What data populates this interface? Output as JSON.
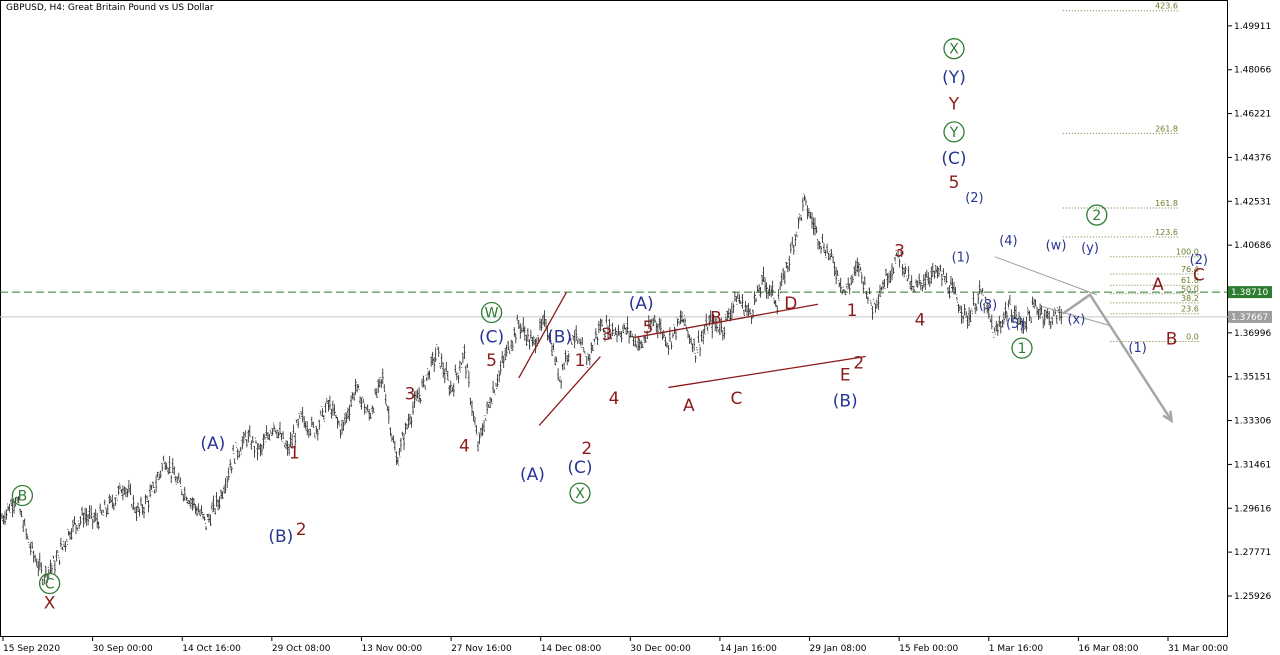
{
  "chart_data": {
    "type": "line",
    "title": "GBPUSD, H4:  Great Britain Pound vs US Dollar",
    "xlabel": "",
    "ylabel": "",
    "ylim": [
      1.242,
      1.51
    ],
    "grid": false,
    "x_ticks": [
      "15 Sep 2020",
      "30 Sep 00:00",
      "14 Oct 16:00",
      "29 Oct 08:00",
      "13 Nov 00:00",
      "27 Nov 16:00",
      "14 Dec 08:00",
      "30 Dec 00:00",
      "14 Jan 16:00",
      "29 Jan 08:00",
      "15 Feb 00:00",
      "1 Mar 16:00",
      "16 Mar 08:00",
      "31 Mar 00:00"
    ],
    "y_ticks": [
      "1.49911",
      "1.48066",
      "1.46221",
      "1.44376",
      "1.42531",
      "1.40686",
      "1.38710",
      "1.36996",
      "1.35151",
      "1.33306",
      "1.31461",
      "1.29616",
      "1.27771",
      "1.25926"
    ],
    "price_tags": {
      "ask": {
        "label": "1.38710",
        "value": 1.3871,
        "color": "#2e7d32"
      },
      "bid": {
        "label": "1.37667",
        "value": 1.37667,
        "color": "#9e9e9e"
      }
    },
    "price_path": [
      [
        0,
        1.292
      ],
      [
        2,
        1.301
      ],
      [
        4,
        1.281
      ],
      [
        6,
        1.268
      ],
      [
        8,
        1.274
      ],
      [
        10,
        1.287
      ],
      [
        12,
        1.293
      ],
      [
        14,
        1.291
      ],
      [
        16,
        1.298
      ],
      [
        18,
        1.306
      ],
      [
        20,
        1.294
      ],
      [
        22,
        1.302
      ],
      [
        24,
        1.317
      ],
      [
        26,
        1.306
      ],
      [
        28,
        1.299
      ],
      [
        30,
        1.29
      ],
      [
        32,
        1.3
      ],
      [
        34,
        1.318
      ],
      [
        36,
        1.326
      ],
      [
        38,
        1.32
      ],
      [
        40,
        1.332
      ],
      [
        42,
        1.32
      ],
      [
        44,
        1.334
      ],
      [
        46,
        1.329
      ],
      [
        48,
        1.34
      ],
      [
        50,
        1.329
      ],
      [
        52,
        1.347
      ],
      [
        54,
        1.335
      ],
      [
        56,
        1.351
      ],
      [
        58,
        1.316
      ],
      [
        60,
        1.335
      ],
      [
        62,
        1.348
      ],
      [
        64,
        1.362
      ],
      [
        66,
        1.346
      ],
      [
        68,
        1.361
      ],
      [
        70,
        1.322
      ],
      [
        72,
        1.344
      ],
      [
        74,
        1.36
      ],
      [
        76,
        1.374
      ],
      [
        78,
        1.365
      ],
      [
        80,
        1.375
      ],
      [
        82,
        1.351
      ],
      [
        84,
        1.37
      ],
      [
        86,
        1.358
      ],
      [
        88,
        1.373
      ],
      [
        90,
        1.371
      ],
      [
        92,
        1.371
      ],
      [
        94,
        1.364
      ],
      [
        96,
        1.376
      ],
      [
        98,
        1.366
      ],
      [
        100,
        1.376
      ],
      [
        102,
        1.363
      ],
      [
        104,
        1.374
      ],
      [
        106,
        1.372
      ],
      [
        108,
        1.385
      ],
      [
        110,
        1.378
      ],
      [
        112,
        1.392
      ],
      [
        114,
        1.383
      ],
      [
        116,
        1.404
      ],
      [
        118,
        1.425
      ],
      [
        120,
        1.411
      ],
      [
        122,
        1.401
      ],
      [
        124,
        1.387
      ],
      [
        126,
        1.398
      ],
      [
        128,
        1.381
      ],
      [
        130,
        1.393
      ],
      [
        132,
        1.403
      ],
      [
        134,
        1.387
      ],
      [
        136,
        1.394
      ],
      [
        138,
        1.395
      ],
      [
        140,
        1.386
      ],
      [
        142,
        1.376
      ],
      [
        144,
        1.387
      ],
      [
        146,
        1.369
      ],
      [
        148,
        1.381
      ],
      [
        150,
        1.373
      ],
      [
        152,
        1.381
      ],
      [
        154,
        1.376
      ],
      [
        156,
        1.378
      ]
    ],
    "forecast": [
      [
        156,
        1.378
      ],
      [
        160,
        1.386
      ],
      [
        172,
        1.333
      ]
    ],
    "fib_levels": [
      {
        "label": "423.6",
        "value": 1.5055
      },
      {
        "label": "261.8",
        "value": 1.4539
      },
      {
        "label": "161.8",
        "value": 1.4225
      },
      {
        "label": "123.6",
        "value": 1.4103
      },
      {
        "label": "100.0",
        "value": 1.402
      },
      {
        "label": "76.4",
        "value": 1.3947
      },
      {
        "label": "61.8",
        "value": 1.39
      },
      {
        "label": "50.0",
        "value": 1.3864
      },
      {
        "label": "38.2",
        "value": 1.3826
      },
      {
        "label": "23.6",
        "value": 1.378
      },
      {
        "label": "0.0",
        "value": 1.3663
      }
    ],
    "channels": [
      {
        "from": [
          93,
          1.368
        ],
        "to": [
          120,
          1.382
        ],
        "color": "#8b1a1a"
      },
      {
        "from": [
          98,
          1.347
        ],
        "to": [
          127,
          1.36
        ],
        "color": "#8b1a1a"
      }
    ],
    "diagonals": [
      {
        "from": [
          76,
          1.351
        ],
        "to": [
          83,
          1.387
        ],
        "color": "#8b1a1a"
      },
      {
        "from": [
          79,
          1.331
        ],
        "to": [
          88,
          1.36
        ],
        "color": "#8b1a1a"
      }
    ],
    "trend_lines": [
      {
        "from": [
          146,
          1.402
        ],
        "to": [
          161,
          1.386
        ],
        "color": "#9e9e9e"
      },
      {
        "from": [
          153,
          1.381
        ],
        "to": [
          163,
          1.373
        ],
        "color": "#9e9e9e"
      }
    ],
    "annotations": [
      {
        "text": "B",
        "x": 3,
        "y": 1.299,
        "color": "#2e7d32",
        "circled": true
      },
      {
        "text": "C",
        "x": 7,
        "y": 1.262,
        "color": "#2e7d32",
        "circled": true
      },
      {
        "text": "X",
        "x": 7,
        "y": 1.254,
        "color": "#8b1a1a"
      },
      {
        "text": "(A)",
        "x": 31,
        "y": 1.321,
        "color": "#283593"
      },
      {
        "text": "(B)",
        "x": 41,
        "y": 1.282,
        "color": "#283593"
      },
      {
        "text": "1",
        "x": 43,
        "y": 1.317,
        "color": "#8b1a1a"
      },
      {
        "text": "2",
        "x": 44,
        "y": 1.285,
        "color": "#8b1a1a"
      },
      {
        "text": "3",
        "x": 60,
        "y": 1.342,
        "color": "#8b1a1a"
      },
      {
        "text": "4",
        "x": 68,
        "y": 1.32,
        "color": "#8b1a1a"
      },
      {
        "text": "5",
        "x": 72,
        "y": 1.356,
        "color": "#8b1a1a"
      },
      {
        "text": "(C)",
        "x": 72,
        "y": 1.366,
        "color": "#283593"
      },
      {
        "text": "W",
        "x": 72,
        "y": 1.376,
        "color": "#2e7d32",
        "circled": true
      },
      {
        "text": "(A)",
        "x": 78,
        "y": 1.308,
        "color": "#283593"
      },
      {
        "text": "(B)",
        "x": 82,
        "y": 1.366,
        "color": "#283593"
      },
      {
        "text": "1",
        "x": 85,
        "y": 1.356,
        "color": "#8b1a1a"
      },
      {
        "text": "2",
        "x": 86,
        "y": 1.319,
        "color": "#8b1a1a"
      },
      {
        "text": "(C)",
        "x": 85,
        "y": 1.311,
        "color": "#283593"
      },
      {
        "text": "X",
        "x": 85,
        "y": 1.3,
        "color": "#2e7d32",
        "circled": true
      },
      {
        "text": "3",
        "x": 89,
        "y": 1.367,
        "color": "#8b1a1a"
      },
      {
        "text": "4",
        "x": 90,
        "y": 1.34,
        "color": "#8b1a1a"
      },
      {
        "text": "5",
        "x": 95,
        "y": 1.37,
        "color": "#8b1a1a"
      },
      {
        "text": "(A)",
        "x": 94,
        "y": 1.38,
        "color": "#283593"
      },
      {
        "text": "A",
        "x": 101,
        "y": 1.337,
        "color": "#8b1a1a"
      },
      {
        "text": "B",
        "x": 105,
        "y": 1.374,
        "color": "#8b1a1a"
      },
      {
        "text": "C",
        "x": 108,
        "y": 1.34,
        "color": "#8b1a1a"
      },
      {
        "text": "D",
        "x": 116,
        "y": 1.38,
        "color": "#8b1a1a"
      },
      {
        "text": "E",
        "x": 124,
        "y": 1.35,
        "color": "#8b1a1a"
      },
      {
        "text": "(B)",
        "x": 124,
        "y": 1.339,
        "color": "#283593"
      },
      {
        "text": "1",
        "x": 125,
        "y": 1.377,
        "color": "#8b1a1a"
      },
      {
        "text": "2",
        "x": 126,
        "y": 1.355,
        "color": "#8b1a1a"
      },
      {
        "text": "3",
        "x": 132,
        "y": 1.402,
        "color": "#8b1a1a"
      },
      {
        "text": "4",
        "x": 135,
        "y": 1.373,
        "color": "#8b1a1a"
      },
      {
        "text": "5",
        "x": 140,
        "y": 1.431,
        "color": "#8b1a1a"
      },
      {
        "text": "(C)",
        "x": 140,
        "y": 1.441,
        "color": "#283593"
      },
      {
        "text": "Y",
        "x": 140,
        "y": 1.452,
        "color": "#2e7d32",
        "circled": true
      },
      {
        "text": "Y",
        "x": 140,
        "y": 1.464,
        "color": "#8b1a1a"
      },
      {
        "text": "(Y)",
        "x": 140,
        "y": 1.475,
        "color": "#283593"
      },
      {
        "text": "X",
        "x": 140,
        "y": 1.487,
        "color": "#2e7d32",
        "circled": true
      },
      {
        "text": "(2)",
        "x": 143,
        "y": 1.425,
        "color": "#283593"
      },
      {
        "text": "(1)",
        "x": 141,
        "y": 1.4,
        "color": "#283593"
      },
      {
        "text": "(3)",
        "x": 145,
        "y": 1.38,
        "color": "#283593"
      },
      {
        "text": "(4)",
        "x": 148,
        "y": 1.407,
        "color": "#283593"
      },
      {
        "text": "(5)",
        "x": 149,
        "y": 1.372,
        "color": "#283593"
      },
      {
        "text": "1",
        "x": 150,
        "y": 1.361,
        "color": "#2e7d32",
        "circled": true
      },
      {
        "text": "(w)",
        "x": 155,
        "y": 1.405,
        "color": "#283593"
      },
      {
        "text": "(x)",
        "x": 158,
        "y": 1.374,
        "color": "#283593"
      },
      {
        "text": "(y)",
        "x": 160,
        "y": 1.404,
        "color": "#283593"
      },
      {
        "text": "2",
        "x": 161,
        "y": 1.417,
        "color": "#2e7d32",
        "circled": true
      },
      {
        "text": "(1)",
        "x": 167,
        "y": 1.362,
        "color": "#283593"
      },
      {
        "text": "A",
        "x": 170,
        "y": 1.388,
        "color": "#8b1a1a"
      },
      {
        "text": "B",
        "x": 172,
        "y": 1.365,
        "color": "#8b1a1a"
      },
      {
        "text": "(2)",
        "x": 176,
        "y": 1.399,
        "color": "#283593"
      },
      {
        "text": "C",
        "x": 176,
        "y": 1.392,
        "color": "#8b1a1a"
      }
    ]
  }
}
